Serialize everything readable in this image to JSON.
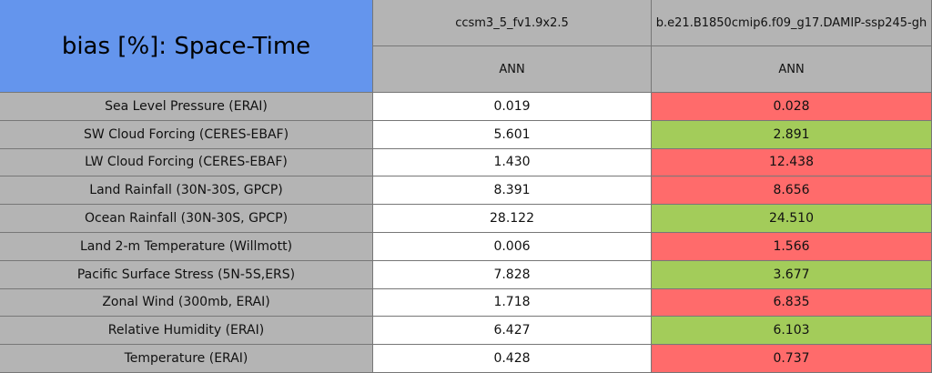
{
  "header": {
    "title": "bias [%]: Space-Time",
    "columns": [
      "ccsm3_5_fv1.9x2.5",
      "b.e21.B1850cmip6.f09_g17.DAMIP-ssp245-gh"
    ],
    "subheaders": [
      "ANN",
      "ANN"
    ]
  },
  "table": {
    "rows": [
      [
        "Sea Level Pressure (ERAI)",
        "0.019",
        "0.028"
      ],
      [
        "SW Cloud Forcing (CERES-EBAF)",
        "5.601",
        "2.891"
      ],
      [
        "LW Cloud Forcing (CERES-EBAF)",
        "1.430",
        "12.438"
      ],
      [
        "Land Rainfall (30N-30S, GPCP)",
        "8.391",
        "8.656"
      ],
      [
        "Ocean Rainfall (30N-30S, GPCP)",
        "28.122",
        "24.510"
      ],
      [
        "Land 2-m Temperature (Willmott)",
        "0.006",
        "1.566"
      ],
      [
        "Pacific Surface Stress (5N-5S,ERS)",
        "7.828",
        "3.677"
      ],
      [
        "Zonal Wind (300mb, ERAI)",
        "1.718",
        "6.835"
      ],
      [
        "Relative Humidity (ERAI)",
        "6.427",
        "6.103"
      ],
      [
        "Temperature (ERAI)",
        "0.428",
        "0.737"
      ]
    ],
    "cell_colors": [
      [
        "#b4b4b4",
        "#ffffff",
        "#ff6b6b"
      ],
      [
        "#b4b4b4",
        "#ffffff",
        "#a3cc5a"
      ],
      [
        "#b4b4b4",
        "#ffffff",
        "#ff6b6b"
      ],
      [
        "#b4b4b4",
        "#ffffff",
        "#ff6b6b"
      ],
      [
        "#b4b4b4",
        "#ffffff",
        "#a3cc5a"
      ],
      [
        "#b4b4b4",
        "#ffffff",
        "#ff6b6b"
      ],
      [
        "#b4b4b4",
        "#ffffff",
        "#a3cc5a"
      ],
      [
        "#b4b4b4",
        "#ffffff",
        "#ff6b6b"
      ],
      [
        "#b4b4b4",
        "#ffffff",
        "#a3cc5a"
      ],
      [
        "#b4b4b4",
        "#ffffff",
        "#ff6b6b"
      ]
    ]
  }
}
